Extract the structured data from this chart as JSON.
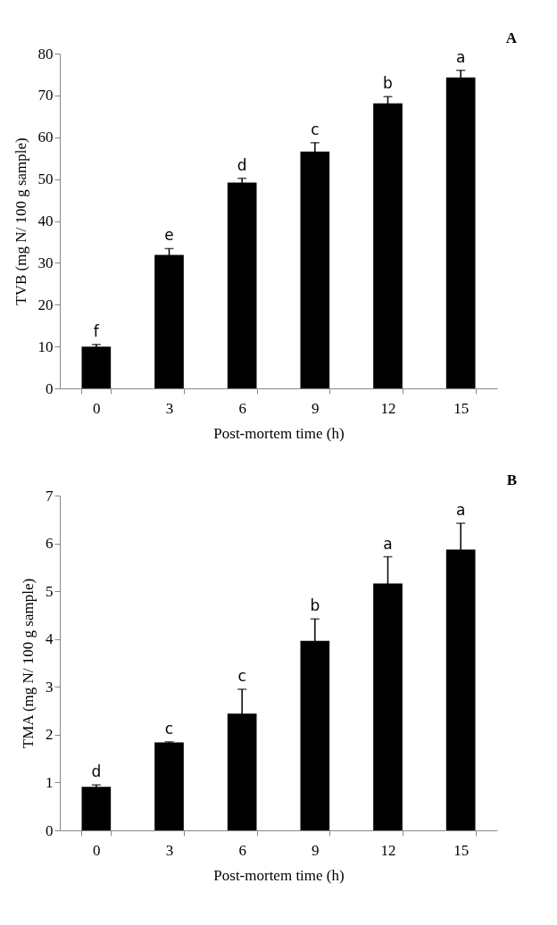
{
  "chart_data": [
    {
      "type": "bar",
      "categories": [
        "0",
        "3",
        "6",
        "9",
        "12",
        "15"
      ],
      "values": [
        10,
        31.9,
        49.2,
        56.6,
        68.1,
        74.3
      ],
      "errors": [
        0.5,
        1.5,
        1.0,
        2.1,
        1.6,
        1.7
      ],
      "color": "#000000",
      "ylim": [
        0,
        80
      ],
      "yticks": [
        0,
        10,
        20,
        30,
        40,
        50,
        60,
        70,
        80
      ],
      "xlabel": "Post-mortem time (h)",
      "ylabel": "TVB (mg N/ 100 g sample)",
      "grid": false,
      "annotations": [
        "A",
        {
          "text": "f",
          "x": "0",
          "y": 10.5
        },
        {
          "text": "e",
          "x": "3",
          "y": 33.4
        },
        {
          "text": "d",
          "x": "6",
          "y": 50.2
        },
        {
          "text": "c",
          "x": "9",
          "y": 58.7
        },
        {
          "text": "b",
          "x": "12",
          "y": 69.7
        },
        {
          "text": "a",
          "x": "15",
          "y": 76
        }
      ]
    },
    {
      "type": "bar",
      "categories": [
        "0",
        "3",
        "6",
        "9",
        "12",
        "15"
      ],
      "values": [
        0.91,
        1.84,
        2.44,
        3.96,
        5.16,
        5.87
      ],
      "errors": [
        0.04,
        0.01,
        0.51,
        0.46,
        0.56,
        0.55
      ],
      "color": "#000000",
      "ylim": [
        0,
        7
      ],
      "yticks": [
        0,
        1,
        2,
        3,
        4,
        5,
        6,
        7
      ],
      "xlabel": "Post-mortem time (h)",
      "ylabel": "TMA (mg N/ 100 g sample)",
      "grid": false,
      "annotations": [
        "B",
        {
          "text": "d",
          "x": "0",
          "y": 0.95
        },
        {
          "text": "c",
          "x": "3",
          "y": 1.85
        },
        {
          "text": "c",
          "x": "6",
          "y": 2.95
        },
        {
          "text": "b",
          "x": "9",
          "y": 4.42
        },
        {
          "text": "a",
          "x": "12",
          "y": 5.72
        },
        {
          "text": "a",
          "x": "15",
          "y": 6.42
        }
      ]
    }
  ]
}
